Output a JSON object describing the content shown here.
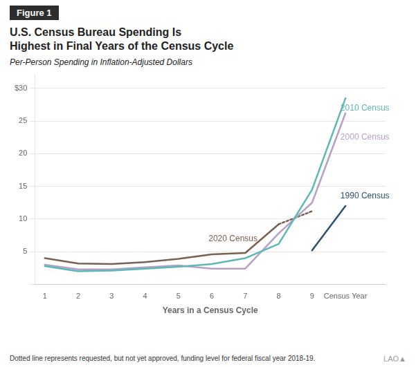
{
  "chart_data": {
    "type": "line",
    "figure_label": "Figure 1",
    "title": "U.S. Census Bureau Spending Is\nHighest in Final Years of the Census Cycle",
    "subtitle": "Per-Person Spending in Inflation-Adjusted Dollars",
    "xlabel": "Years in a Census Cycle",
    "footnote": "Dotted line represents requested, but not yet approved, funding level for federal fiscal year 2018-19.",
    "watermark": "LAO▲",
    "xlim": [
      0.7,
      11.2
    ],
    "xticks": [
      1,
      2,
      3,
      4,
      5,
      6,
      7,
      8,
      9,
      {
        "value": 10,
        "label": "Census Year"
      }
    ],
    "ylim": [
      0,
      32
    ],
    "yticks": [
      {
        "value": 0,
        "label": ""
      },
      5,
      10,
      15,
      20,
      25,
      {
        "value": 30,
        "label": "$30"
      }
    ],
    "grid": "y",
    "series": [
      {
        "name": "2010 Census",
        "color": "#5bb8b4",
        "x": [
          1,
          2,
          3,
          4,
          5,
          6,
          7,
          8,
          9,
          10
        ],
        "values": [
          2.8,
          2.0,
          2.1,
          2.4,
          2.7,
          3.1,
          4.0,
          6.2,
          14.5,
          28.5
        ]
      },
      {
        "name": "2000 Census",
        "color": "#b5a0c8",
        "x": [
          1,
          2,
          3,
          4,
          5,
          6,
          7,
          8,
          9,
          10
        ],
        "values": [
          3.0,
          2.3,
          2.3,
          2.6,
          2.9,
          2.4,
          2.4,
          7.8,
          12.5,
          26.2
        ]
      },
      {
        "name": "1990 Census",
        "color": "#2d4f6e",
        "x": [
          9,
          10
        ],
        "values": [
          5.2,
          12.0
        ]
      },
      {
        "name": "2020 Census",
        "color": "#7a6050",
        "x": [
          1,
          2,
          3,
          4,
          5,
          6,
          7,
          8
        ],
        "values": [
          4.0,
          3.2,
          3.1,
          3.4,
          3.9,
          4.6,
          4.8,
          9.2
        ]
      },
      {
        "color": "#7a6050",
        "x": [
          8,
          9
        ],
        "values": [
          9.2,
          11.2
        ],
        "line_style": "dotted"
      }
    ],
    "annotations": [
      {
        "text": "2010 Census",
        "x": 9.85,
        "y": 27.0
      },
      {
        "text": "2000 Census",
        "x": 9.85,
        "y": 22.5
      },
      {
        "text": "1990 Census",
        "x": 9.85,
        "y": 13.5
      },
      {
        "text": "2020 Census",
        "x": 5.9,
        "y": 7.0
      }
    ]
  }
}
